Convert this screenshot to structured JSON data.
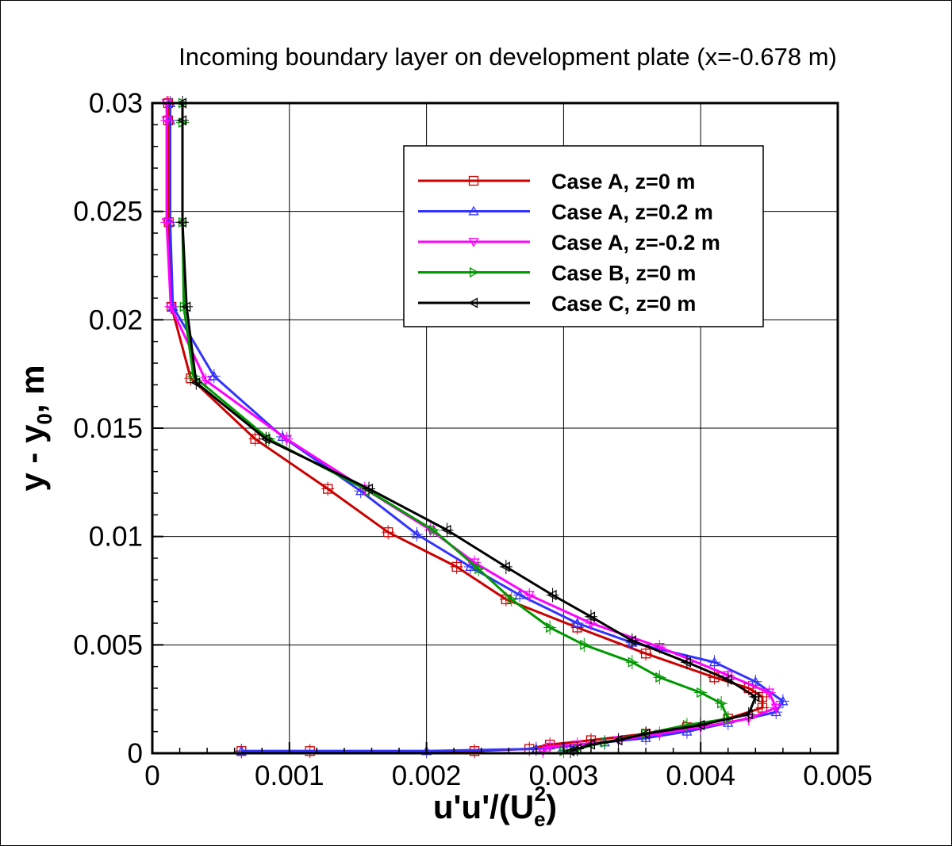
{
  "chart_data": {
    "type": "line",
    "title": "Incoming boundary layer on development plate (x=-0.678 m)",
    "xlabel": "u'u'/(Uₑ²)",
    "xlabel_parts": {
      "main": "u'u'/(U",
      "sub": "e",
      "sup": "2",
      "close": ")"
    },
    "ylabel": "y - y₀, m",
    "ylabel_parts": {
      "pre": "y - y",
      "sub": "0",
      "post": ", m"
    },
    "xlim": [
      0,
      0.005
    ],
    "ylim": [
      0,
      0.03
    ],
    "xticks": [
      "0",
      "0.001",
      "0.002",
      "0.003",
      "0.004",
      "0.005"
    ],
    "yticks": [
      "0",
      "0.005",
      "0.01",
      "0.015",
      "0.02",
      "0.025",
      "0.03"
    ],
    "grid": true,
    "legend_position": "top-right",
    "series": [
      {
        "name": "Case A, z=0 m",
        "color": "#cc0000",
        "marker": "square",
        "points": [
          [
            0.000115,
            0.03
          ],
          [
            0.000115,
            0.0292
          ],
          [
            0.00012,
            0.0245
          ],
          [
            0.00014,
            0.0206
          ],
          [
            0.00028,
            0.0173
          ],
          [
            0.00075,
            0.0145
          ],
          [
            0.00128,
            0.0122
          ],
          [
            0.00172,
            0.0102
          ],
          [
            0.00222,
            0.0086
          ],
          [
            0.00258,
            0.0071
          ],
          [
            0.0031,
            0.0058
          ],
          [
            0.0036,
            0.0046
          ],
          [
            0.0041,
            0.0035
          ],
          [
            0.00435,
            0.003
          ],
          [
            0.00445,
            0.0026
          ],
          [
            0.00445,
            0.0021
          ],
          [
            0.0042,
            0.0016
          ],
          [
            0.0039,
            0.0012
          ],
          [
            0.0036,
            0.0009
          ],
          [
            0.0032,
            0.0006
          ],
          [
            0.0029,
            0.0004
          ],
          [
            0.00275,
            0.0002
          ],
          [
            0.00235,
            0.0001
          ],
          [
            0.00115,
            0.0001
          ],
          [
            0.00065,
            0.0001
          ]
        ]
      },
      {
        "name": "Case A, z=0.2 m",
        "color": "#3333ff",
        "marker": "triangle-up",
        "points": [
          [
            0.00013,
            0.03
          ],
          [
            0.00013,
            0.0292
          ],
          [
            0.00013,
            0.0245
          ],
          [
            0.00015,
            0.0206
          ],
          [
            0.00045,
            0.0174
          ],
          [
            0.00095,
            0.0146
          ],
          [
            0.00152,
            0.0121
          ],
          [
            0.00193,
            0.0101
          ],
          [
            0.00232,
            0.0086
          ],
          [
            0.00268,
            0.0073
          ],
          [
            0.0031,
            0.006
          ],
          [
            0.0035,
            0.0051
          ],
          [
            0.0041,
            0.0042
          ],
          [
            0.0044,
            0.0033
          ],
          [
            0.0046,
            0.0024
          ],
          [
            0.00455,
            0.0019
          ],
          [
            0.0042,
            0.0014
          ],
          [
            0.0039,
            0.001
          ],
          [
            0.0036,
            0.0007
          ],
          [
            0.0033,
            0.0005
          ],
          [
            0.003,
            0.0003
          ],
          [
            0.0028,
            0.0002
          ],
          [
            0.002,
            0.0001
          ],
          [
            0.00065,
            0.0001
          ]
        ]
      },
      {
        "name": "Case A, z=-0.2 m",
        "color": "#ff00ff",
        "marker": "triangle-down",
        "points": [
          [
            0.000105,
            0.03
          ],
          [
            0.000105,
            0.0292
          ],
          [
            0.000105,
            0.0245
          ],
          [
            0.000135,
            0.0206
          ],
          [
            0.00039,
            0.0172
          ],
          [
            0.00098,
            0.0145
          ],
          [
            0.00155,
            0.0122
          ],
          [
            0.00203,
            0.0103
          ],
          [
            0.00235,
            0.0088
          ],
          [
            0.00275,
            0.0073
          ],
          [
            0.0032,
            0.006
          ],
          [
            0.0037,
            0.0049
          ],
          [
            0.0042,
            0.0036
          ],
          [
            0.0045,
            0.0028
          ],
          [
            0.00455,
            0.0021
          ],
          [
            0.00435,
            0.0016
          ],
          [
            0.004,
            0.0012
          ],
          [
            0.0037,
            0.0009
          ],
          [
            0.0034,
            0.0006
          ],
          [
            0.0031,
            0.0004
          ],
          [
            0.0029,
            0.0003
          ],
          [
            0.00285,
            0.0001
          ]
        ]
      },
      {
        "name": "Case B, z=0 m",
        "color": "#009900",
        "marker": "triangle-right",
        "points": [
          [
            0.00022,
            0.03
          ],
          [
            0.00022,
            0.0291
          ],
          [
            0.00022,
            0.0245
          ],
          [
            0.00023,
            0.0206
          ],
          [
            0.0003,
            0.0174
          ],
          [
            0.00085,
            0.0145
          ],
          [
            0.00158,
            0.0121
          ],
          [
            0.00205,
            0.0103
          ],
          [
            0.00238,
            0.0085
          ],
          [
            0.00262,
            0.0071
          ],
          [
            0.0029,
            0.0058
          ],
          [
            0.00315,
            0.005
          ],
          [
            0.0035,
            0.0042
          ],
          [
            0.0037,
            0.0035
          ],
          [
            0.004,
            0.0028
          ],
          [
            0.00415,
            0.0023
          ],
          [
            0.0042,
            0.0016
          ],
          [
            0.0039,
            0.0013
          ],
          [
            0.0036,
            0.0009
          ],
          [
            0.0033,
            0.0005
          ],
          [
            0.0031,
            0.0002
          ],
          [
            0.003,
            0.0001
          ]
        ]
      },
      {
        "name": "Case C, z=0 m",
        "color": "#000000",
        "marker": "triangle-left",
        "points": [
          [
            0.00022,
            0.03
          ],
          [
            0.00022,
            0.0292
          ],
          [
            0.00022,
            0.0245
          ],
          [
            0.00025,
            0.0206
          ],
          [
            0.00032,
            0.0171
          ],
          [
            0.00083,
            0.0145
          ],
          [
            0.00158,
            0.0122
          ],
          [
            0.00215,
            0.0103
          ],
          [
            0.00258,
            0.0086
          ],
          [
            0.00292,
            0.0073
          ],
          [
            0.0032,
            0.0063
          ],
          [
            0.0035,
            0.0052
          ],
          [
            0.0039,
            0.0042
          ],
          [
            0.0042,
            0.0034
          ],
          [
            0.0044,
            0.0026
          ],
          [
            0.00435,
            0.0018
          ],
          [
            0.004,
            0.0013
          ],
          [
            0.0036,
            0.0009
          ],
          [
            0.0034,
            0.0006
          ],
          [
            0.0032,
            0.0004
          ],
          [
            0.0031,
            0.0002
          ],
          [
            0.00305,
            0.0001
          ]
        ]
      }
    ]
  }
}
